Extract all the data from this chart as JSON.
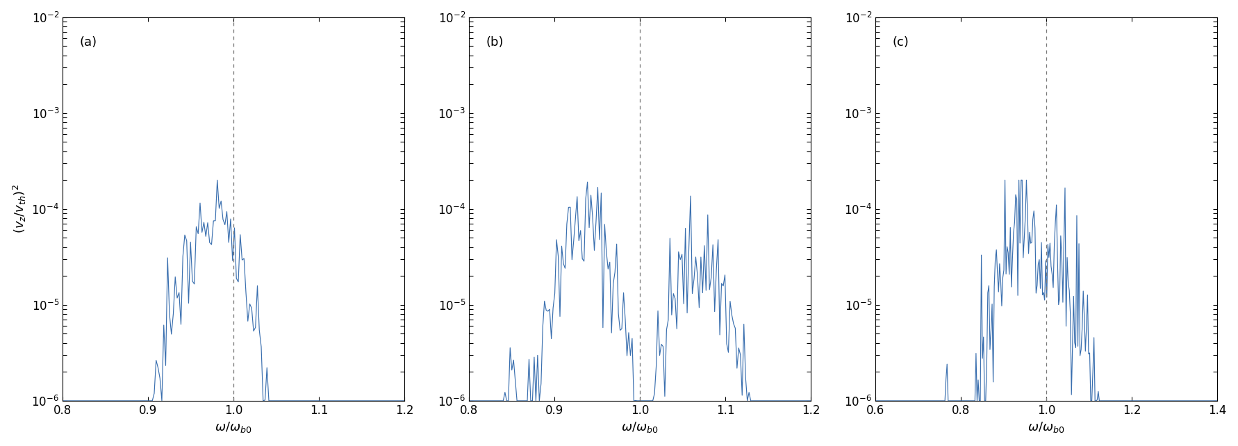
{
  "panel_a": {
    "label": "(a)",
    "xlim": [
      0.8,
      1.2
    ],
    "xticks": [
      0.8,
      0.9,
      1.0,
      1.1,
      1.2
    ],
    "xtick_labels": [
      "0.8",
      "0.9",
      "1.0",
      "1.1",
      "1.2"
    ],
    "vline": 1.0,
    "vline_style": "-.",
    "ylim": [
      1e-06,
      0.01
    ],
    "ylabel": "$(v_z/v_{th})^2$",
    "xlabel": "$\\omega/\\omega_{b0}$"
  },
  "panel_b": {
    "label": "(b)",
    "xlim": [
      0.8,
      1.2
    ],
    "xticks": [
      0.8,
      0.9,
      1.0,
      1.1,
      1.2
    ],
    "xtick_labels": [
      "0.8",
      "0.9",
      "1.0",
      "1.1",
      "1.2"
    ],
    "vline": 1.0,
    "vline_style": "-.",
    "ylim": [
      1e-06,
      0.01
    ],
    "xlabel": "$\\omega/\\omega_{b0}$"
  },
  "panel_c": {
    "label": "(c)",
    "xlim": [
      0.6,
      1.4
    ],
    "xticks": [
      0.6,
      0.8,
      1.0,
      1.2,
      1.4
    ],
    "xtick_labels": [
      "0.6",
      "0.8",
      "1.0",
      "1.2",
      "1.4"
    ],
    "vline": 1.0,
    "vline_style": "-.",
    "ylim": [
      1e-06,
      0.01
    ],
    "xlabel": "$\\omega/\\omega_{b0}$"
  },
  "line_color": "#3A6FAF",
  "vline_color": "#777777",
  "background_color": "#ffffff",
  "yticks": [
    1e-06,
    1e-05,
    0.0001,
    0.001,
    0.01
  ]
}
